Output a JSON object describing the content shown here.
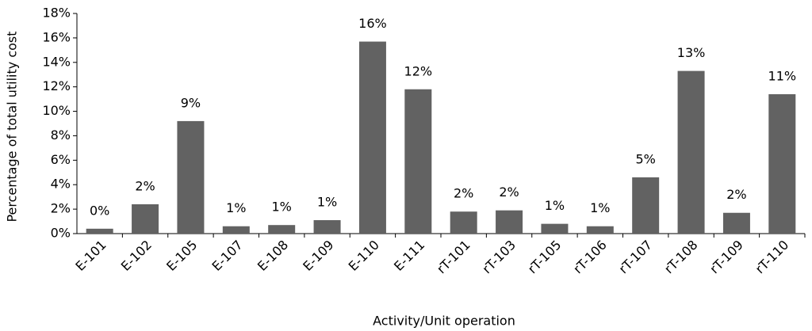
{
  "chart_data": {
    "type": "bar",
    "x_label": "Activity/Unit operation",
    "y_label": "Percentage of total utility cost",
    "categories": [
      "E-101",
      "E-102",
      "E-105",
      "E-107",
      "E-108",
      "E-109",
      "E-110",
      "E-111",
      "rT-101",
      "rT-103",
      "rT-105",
      "rT-106",
      "rT-107",
      "rT-108",
      "rT-109",
      "rT-110"
    ],
    "values": [
      0.4,
      2.4,
      9.2,
      0.6,
      0.7,
      1.1,
      15.7,
      11.8,
      1.8,
      1.9,
      0.8,
      0.6,
      4.6,
      13.3,
      1.7,
      11.4
    ],
    "value_labels": [
      "0%",
      "2%",
      "9%",
      "1%",
      "1%",
      "1%",
      "16%",
      "12%",
      "2%",
      "2%",
      "1%",
      "1%",
      "5%",
      "13%",
      "2%",
      "11%"
    ],
    "color": "#626262",
    "ylim": [
      0,
      18
    ],
    "yticks": [
      {
        "value": 0,
        "label": "0%"
      },
      {
        "value": 2,
        "label": "2%"
      },
      {
        "value": 4,
        "label": "4%"
      },
      {
        "value": 6,
        "label": "6%"
      },
      {
        "value": 8,
        "label": "8%"
      },
      {
        "value": 10,
        "label": "10%"
      },
      {
        "value": 12,
        "label": "12%"
      },
      {
        "value": 14,
        "label": "14%"
      },
      {
        "value": 16,
        "label": "16%"
      },
      {
        "value": 18,
        "label": "18%"
      }
    ],
    "grid": false
  }
}
